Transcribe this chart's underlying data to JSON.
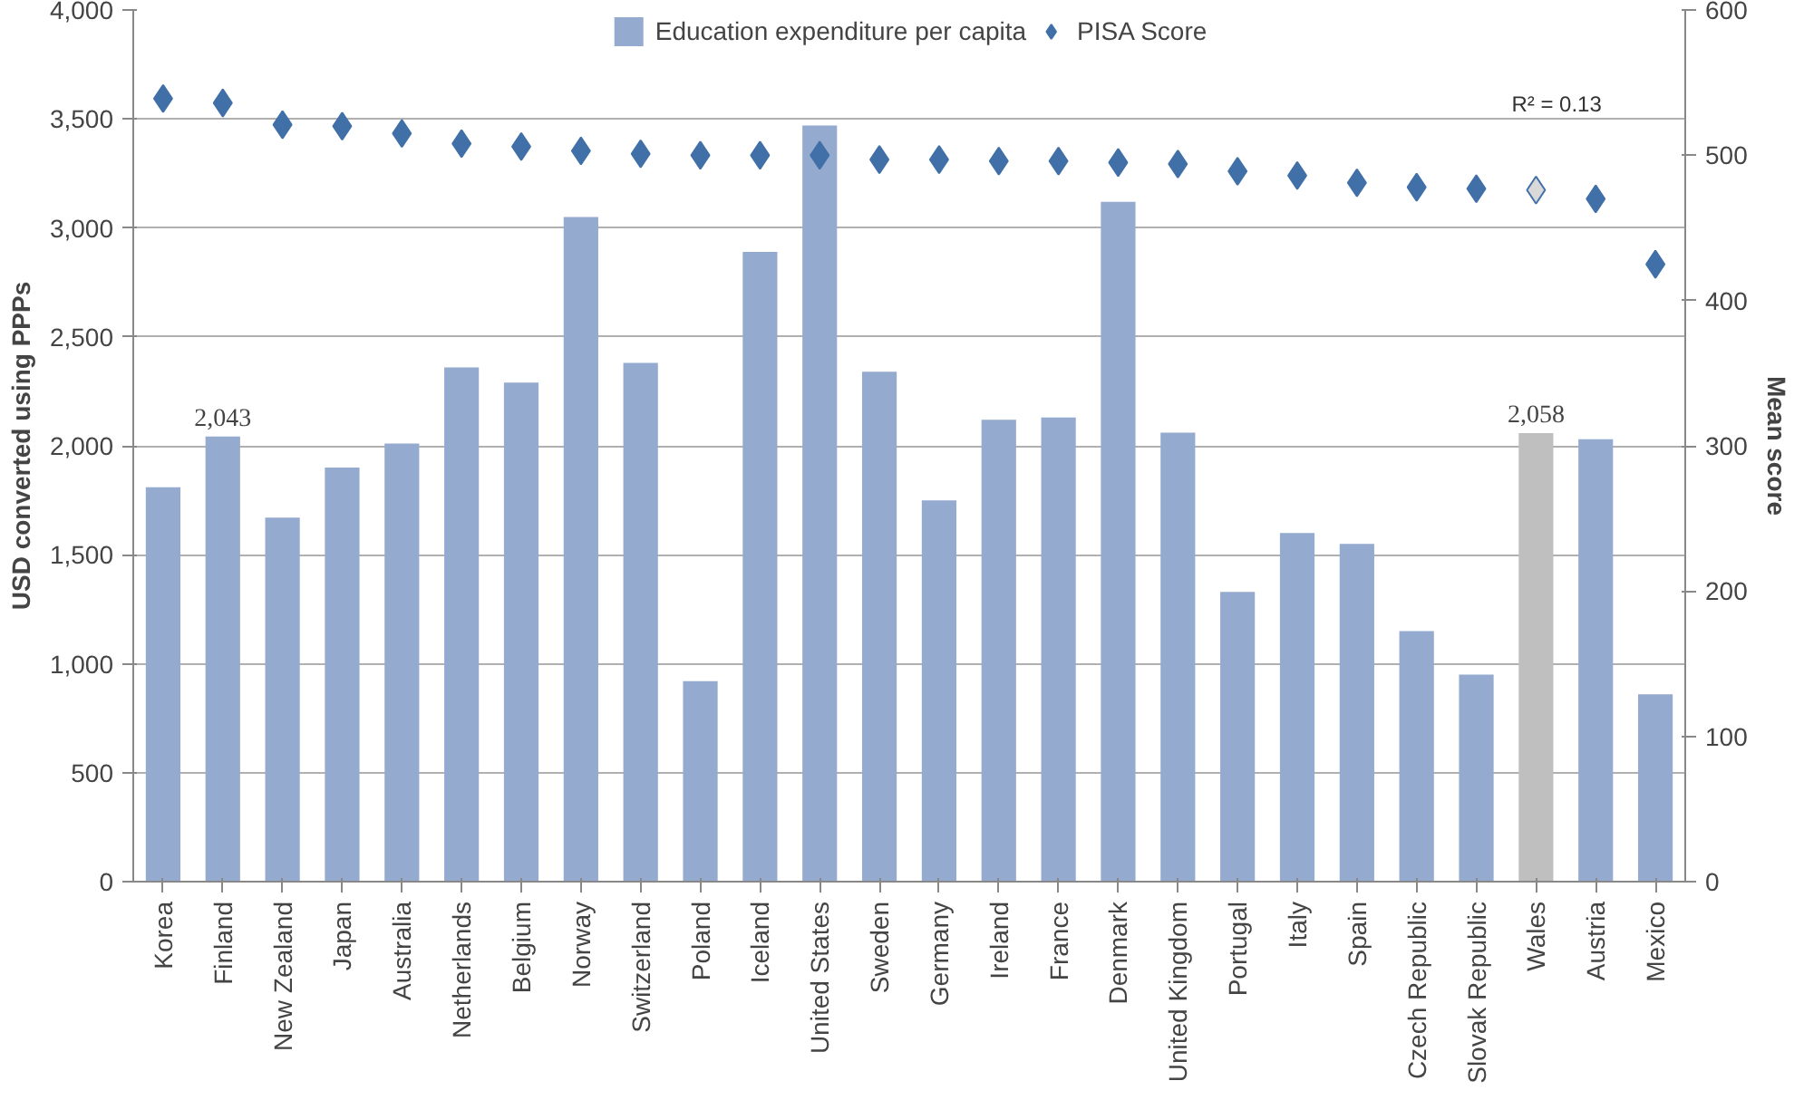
{
  "chart_data": {
    "type": "bar",
    "ylabel": "USD converted using PPPs",
    "y2label": "Mean score",
    "categories": [
      "Korea",
      "Finland",
      "New Zealand",
      "Japan",
      "Australia",
      "Netherlands",
      "Belgium",
      "Norway",
      "Switzerland",
      "Poland",
      "Iceland",
      "United States",
      "Sweden",
      "Germany",
      "Ireland",
      "France",
      "Denmark",
      "United Kingdom",
      "Portugal",
      "Italy",
      "Spain",
      "Czech Republic",
      "Slovak Republic",
      "Wales",
      "Austria",
      "Mexico"
    ],
    "series": [
      {
        "name": "Education expenditure per capita",
        "color": "#95aacf",
        "colors": [
          null,
          null,
          null,
          null,
          null,
          null,
          null,
          null,
          null,
          null,
          null,
          null,
          null,
          null,
          null,
          null,
          null,
          null,
          null,
          null,
          null,
          null,
          null,
          "#bfbfbf",
          null,
          null
        ],
        "values": [
          1810,
          2043,
          1670,
          1900,
          2010,
          2360,
          2290,
          3050,
          2380,
          920,
          2890,
          3470,
          2340,
          1750,
          2120,
          2130,
          3120,
          2060,
          1330,
          1600,
          1550,
          1150,
          950,
          2058,
          2030,
          860
        ],
        "value_labels": [
          null,
          "2,043",
          null,
          null,
          null,
          null,
          null,
          null,
          null,
          null,
          null,
          null,
          null,
          null,
          null,
          null,
          null,
          null,
          null,
          null,
          null,
          null,
          null,
          "2,058",
          null,
          null
        ]
      },
      {
        "name": "PISA Score",
        "type": "scatter",
        "axis": "y2",
        "marker": "diamond",
        "color": "#4170a8",
        "colors": [
          null,
          null,
          null,
          null,
          null,
          null,
          null,
          null,
          null,
          null,
          null,
          null,
          null,
          null,
          null,
          null,
          null,
          null,
          null,
          null,
          null,
          null,
          null,
          "#d9d9d9",
          null,
          null
        ],
        "values": [
          539,
          536,
          521,
          520,
          515,
          508,
          506,
          503,
          501,
          500,
          500,
          500,
          497,
          497,
          496,
          496,
          495,
          494,
          489,
          486,
          481,
          478,
          477,
          476,
          470,
          425
        ]
      }
    ],
    "annotations": [
      "R² = 0.13"
    ],
    "ylim": [
      0,
      4000
    ],
    "yticks": [
      {
        "value": 0,
        "label": "0"
      },
      {
        "value": 500,
        "label": "500"
      },
      {
        "value": 1000,
        "label": "1,000"
      },
      {
        "value": 1500,
        "label": "1,500"
      },
      {
        "value": 2000,
        "label": "2,000"
      },
      {
        "value": 2500,
        "label": "2,500"
      },
      {
        "value": 3000,
        "label": "3,000"
      },
      {
        "value": 3500,
        "label": "3,500"
      },
      {
        "value": 4000,
        "label": "4,000"
      }
    ],
    "y2lim": [
      0,
      600
    ],
    "y2ticks": [
      0,
      100,
      200,
      300,
      400,
      500,
      600
    ],
    "grid": "y",
    "legend": "top"
  }
}
